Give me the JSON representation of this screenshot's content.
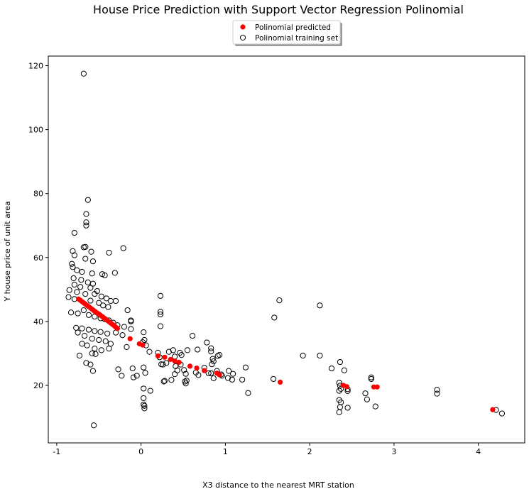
{
  "chart_data": {
    "type": "scatter",
    "title": "House Price Prediction with Support Vector Regression Polinomial",
    "xlabel": "X3 distance to the nearest MRT station",
    "ylabel": "Y house price of unit area",
    "xlim": [
      -1.1,
      4.55
    ],
    "ylim": [
      2,
      123
    ],
    "xticks": [
      -1,
      0,
      1,
      2,
      3,
      4
    ],
    "yticks": [
      20,
      40,
      60,
      80,
      100,
      120
    ],
    "grid": false,
    "legend_position": "top-center-outside",
    "series": [
      {
        "name": "Polinomial predicted",
        "marker": "filled-circle",
        "color": "#ff0000",
        "points": [
          [
            -0.74,
            47.0
          ],
          [
            -0.72,
            46.6
          ],
          [
            -0.7,
            46.2
          ],
          [
            -0.68,
            45.8
          ],
          [
            -0.66,
            45.4
          ],
          [
            -0.64,
            45.0
          ],
          [
            -0.62,
            44.6
          ],
          [
            -0.6,
            44.2
          ],
          [
            -0.58,
            43.8
          ],
          [
            -0.56,
            43.4
          ],
          [
            -0.54,
            43.0
          ],
          [
            -0.52,
            42.6
          ],
          [
            -0.5,
            42.3
          ],
          [
            -0.48,
            41.9
          ],
          [
            -0.46,
            41.5
          ],
          [
            -0.44,
            41.1
          ],
          [
            -0.42,
            40.7
          ],
          [
            -0.4,
            40.3
          ],
          [
            -0.38,
            39.9
          ],
          [
            -0.36,
            39.5
          ],
          [
            -0.34,
            39.1
          ],
          [
            -0.32,
            38.7
          ],
          [
            -0.3,
            38.2
          ],
          [
            -0.28,
            37.8
          ],
          [
            -0.13,
            34.6
          ],
          [
            -0.02,
            33.0
          ],
          [
            0.02,
            32.6
          ],
          [
            0.2,
            29.2
          ],
          [
            0.28,
            28.8
          ],
          [
            0.35,
            28.1
          ],
          [
            0.4,
            27.6
          ],
          [
            0.45,
            27.2
          ],
          [
            0.58,
            26.0
          ],
          [
            0.66,
            25.4
          ],
          [
            0.75,
            24.6
          ],
          [
            0.9,
            23.8
          ],
          [
            0.93,
            23.3
          ],
          [
            1.65,
            21.0
          ],
          [
            2.4,
            20.0
          ],
          [
            2.44,
            19.6
          ],
          [
            2.76,
            19.5
          ],
          [
            2.8,
            19.5
          ],
          [
            4.17,
            12.4
          ]
        ]
      },
      {
        "name": "Polinomial training set",
        "marker": "open-circle",
        "color": "#000000",
        "points": [
          [
            -0.68,
            117.5
          ],
          [
            -0.63,
            78.0
          ],
          [
            -0.65,
            73.6
          ],
          [
            -0.65,
            71.0
          ],
          [
            -0.65,
            70.0
          ],
          [
            -0.79,
            67.7
          ],
          [
            -0.68,
            63.2
          ],
          [
            -0.66,
            63.3
          ],
          [
            -0.21,
            62.9
          ],
          [
            -0.81,
            62.0
          ],
          [
            -0.59,
            61.8
          ],
          [
            -0.38,
            61.5
          ],
          [
            -0.79,
            60.7
          ],
          [
            -0.66,
            59.6
          ],
          [
            -0.57,
            58.8
          ],
          [
            -0.82,
            58.0
          ],
          [
            -0.81,
            57.0
          ],
          [
            -0.76,
            56.0
          ],
          [
            -0.7,
            55.5
          ],
          [
            -0.58,
            55.0
          ],
          [
            -0.46,
            54.8
          ],
          [
            -0.43,
            54.4
          ],
          [
            -0.31,
            55.2
          ],
          [
            -0.8,
            53.5
          ],
          [
            -0.71,
            53.0
          ],
          [
            -0.63,
            52.2
          ],
          [
            -0.57,
            51.8
          ],
          [
            -0.79,
            51.5
          ],
          [
            -0.72,
            50.8
          ],
          [
            -0.6,
            50.5
          ],
          [
            -0.52,
            49.5
          ],
          [
            -0.85,
            49.8
          ],
          [
            -0.76,
            49.2
          ],
          [
            -0.66,
            48.6
          ],
          [
            -0.55,
            48.6
          ],
          [
            -0.47,
            47.8
          ],
          [
            -0.41,
            47.2
          ],
          [
            -0.36,
            46.4
          ],
          [
            -0.3,
            46.4
          ],
          [
            -0.86,
            47.6
          ],
          [
            -0.79,
            47.0
          ],
          [
            -0.6,
            46.5
          ],
          [
            -0.5,
            45.8
          ],
          [
            -0.45,
            45.0
          ],
          [
            -0.39,
            44.5
          ],
          [
            -0.83,
            42.8
          ],
          [
            -0.75,
            42.5
          ],
          [
            -0.68,
            43.5
          ],
          [
            -0.62,
            42.0
          ],
          [
            -0.55,
            41.5
          ],
          [
            -0.48,
            41.0
          ],
          [
            -0.43,
            40.7
          ],
          [
            -0.38,
            40.3
          ],
          [
            -0.33,
            39.6
          ],
          [
            -0.28,
            38.8
          ],
          [
            -0.2,
            38.3
          ],
          [
            -0.16,
            43.5
          ],
          [
            -0.12,
            40.3
          ],
          [
            -0.12,
            40.0
          ],
          [
            -0.12,
            37.6
          ],
          [
            -0.77,
            38.0
          ],
          [
            -0.7,
            37.8
          ],
          [
            -0.62,
            37.4
          ],
          [
            -0.55,
            37.0
          ],
          [
            -0.48,
            36.7
          ],
          [
            -0.4,
            36.2
          ],
          [
            -0.3,
            36.5
          ],
          [
            -0.22,
            35.7
          ],
          [
            -0.75,
            36.5
          ],
          [
            -0.67,
            35.5
          ],
          [
            -0.58,
            34.6
          ],
          [
            -0.5,
            34.2
          ],
          [
            -0.42,
            33.8
          ],
          [
            -0.36,
            33.0
          ],
          [
            -0.7,
            33.0
          ],
          [
            -0.64,
            32.5
          ],
          [
            -0.55,
            31.5
          ],
          [
            -0.47,
            31.0
          ],
          [
            -0.38,
            31.5
          ],
          [
            -0.17,
            32.0
          ],
          [
            -0.73,
            29.3
          ],
          [
            -0.58,
            30.0
          ],
          [
            -0.54,
            29.8
          ],
          [
            -0.65,
            27.0
          ],
          [
            -0.6,
            26.5
          ],
          [
            -0.57,
            24.5
          ],
          [
            -0.27,
            25.0
          ],
          [
            -0.23,
            23.0
          ],
          [
            -0.1,
            25.3
          ],
          [
            -0.09,
            22.5
          ],
          [
            -0.05,
            23.0
          ],
          [
            -0.56,
            7.5
          ],
          [
            0.03,
            36.6
          ],
          [
            0.04,
            34.2
          ],
          [
            0.02,
            33.5
          ],
          [
            0.06,
            32.5
          ],
          [
            0.1,
            30.5
          ],
          [
            0.03,
            25.6
          ],
          [
            0.05,
            23.9
          ],
          [
            0.03,
            19.0
          ],
          [
            0.11,
            18.3
          ],
          [
            0.03,
            16.0
          ],
          [
            0.03,
            14.0
          ],
          [
            0.04,
            13.6
          ],
          [
            0.04,
            12.8
          ],
          [
            0.23,
            48.0
          ],
          [
            0.23,
            43.0
          ],
          [
            0.23,
            42.2
          ],
          [
            0.23,
            38.5
          ],
          [
            0.2,
            30.2
          ],
          [
            0.22,
            28.8
          ],
          [
            0.24,
            26.6
          ],
          [
            0.26,
            26.5
          ],
          [
            0.3,
            27.0
          ],
          [
            0.33,
            30.5
          ],
          [
            0.38,
            31.0
          ],
          [
            0.4,
            29.0
          ],
          [
            0.41,
            26.0
          ],
          [
            0.46,
            30.2
          ],
          [
            0.48,
            29.5
          ],
          [
            0.47,
            26.5
          ],
          [
            0.43,
            24.7
          ],
          [
            0.4,
            23.5
          ],
          [
            0.36,
            21.7
          ],
          [
            0.28,
            21.4
          ],
          [
            0.27,
            21.2
          ],
          [
            0.55,
            31.0
          ],
          [
            0.51,
            24.8
          ],
          [
            0.53,
            23.6
          ],
          [
            0.52,
            21.2
          ],
          [
            0.54,
            21.5
          ],
          [
            0.53,
            20.6
          ],
          [
            0.61,
            35.5
          ],
          [
            0.67,
            31.2
          ],
          [
            0.65,
            24.0
          ],
          [
            0.75,
            25.5
          ],
          [
            0.68,
            23.2
          ],
          [
            0.78,
            33.4
          ],
          [
            0.8,
            23.8
          ],
          [
            0.83,
            31.6
          ],
          [
            0.83,
            30.6
          ],
          [
            0.85,
            28.3
          ],
          [
            0.86,
            27.5
          ],
          [
            0.84,
            26.6
          ],
          [
            0.83,
            23.8
          ],
          [
            0.86,
            22.2
          ],
          [
            0.9,
            24.5
          ],
          [
            0.93,
            29.5
          ],
          [
            0.91,
            29.2
          ],
          [
            0.95,
            23.4
          ],
          [
            0.96,
            23.0
          ],
          [
            1.04,
            24.5
          ],
          [
            1.03,
            22.3
          ],
          [
            1.09,
            23.6
          ],
          [
            1.08,
            21.8
          ],
          [
            1.24,
            25.6
          ],
          [
            1.2,
            21.8
          ],
          [
            1.27,
            17.6
          ],
          [
            1.58,
            41.2
          ],
          [
            1.64,
            46.6
          ],
          [
            1.57,
            22.0
          ],
          [
            2.12,
            45.0
          ],
          [
            1.92,
            29.3
          ],
          [
            2.12,
            29.3
          ],
          [
            2.26,
            25.3
          ],
          [
            2.36,
            27.3
          ],
          [
            2.41,
            24.7
          ],
          [
            2.35,
            20.8
          ],
          [
            2.36,
            19.9
          ],
          [
            2.35,
            18.3
          ],
          [
            2.37,
            18.9
          ],
          [
            2.35,
            15.4
          ],
          [
            2.37,
            14.7
          ],
          [
            2.36,
            13.2
          ],
          [
            2.35,
            11.6
          ],
          [
            2.45,
            18.8
          ],
          [
            2.45,
            18.2
          ],
          [
            2.45,
            13.0
          ],
          [
            2.66,
            17.5
          ],
          [
            2.68,
            15.6
          ],
          [
            2.73,
            22.5
          ],
          [
            2.73,
            22.0
          ],
          [
            2.78,
            13.4
          ],
          [
            3.51,
            18.6
          ],
          [
            3.51,
            17.4
          ],
          [
            4.21,
            12.3
          ],
          [
            4.28,
            11.2
          ]
        ]
      }
    ]
  }
}
